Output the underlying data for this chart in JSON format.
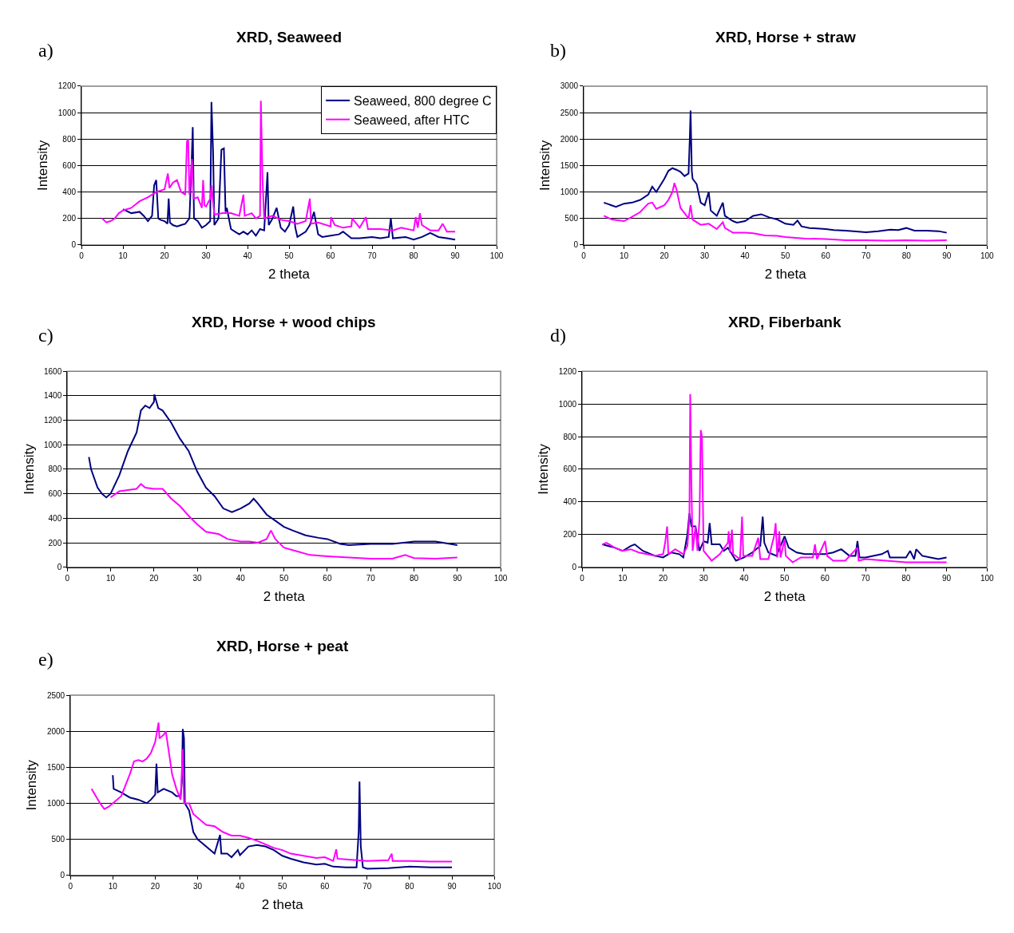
{
  "chart_data": [
    {
      "type": "line",
      "title": "XRD, Seaweed",
      "xlabel": "2 theta",
      "ylabel": "Intensity",
      "annotations": [
        "a)"
      ],
      "xlim": [
        0,
        100
      ],
      "xticks": [
        0,
        10,
        20,
        30,
        40,
        50,
        60,
        70,
        80,
        90,
        100
      ],
      "ylim": [
        0,
        1200
      ],
      "yticks": [
        0,
        200,
        400,
        600,
        800,
        1000,
        1200
      ],
      "grid": "y",
      "legend": "top right",
      "marker": "none",
      "series": [
        {
          "name": "Seaweed, 800 degree C",
          "color": "#000080",
          "x": [
            10,
            12,
            14,
            15,
            16,
            17,
            17.5,
            18,
            18.5,
            19,
            20,
            20.7,
            21,
            21.3,
            22,
            23,
            24,
            25,
            26,
            26.5,
            26.8,
            27.1,
            28,
            29,
            30,
            31,
            31.3,
            31.7,
            32,
            33,
            33.7,
            34.3,
            34.7,
            35,
            36,
            37,
            38,
            39,
            40,
            41,
            42,
            43,
            44,
            44.8,
            45.1,
            46,
            47,
            48,
            49,
            50,
            51,
            51.5,
            52,
            54,
            55,
            56,
            57,
            58,
            60,
            62,
            63,
            65,
            67,
            70,
            72,
            74,
            74.5,
            75,
            78,
            80,
            82,
            84,
            86,
            88,
            90
          ],
          "values": [
            270,
            240,
            250,
            220,
            180,
            220,
            450,
            490,
            200,
            190,
            180,
            160,
            350,
            170,
            150,
            140,
            150,
            160,
            200,
            600,
            890,
            200,
            180,
            130,
            150,
            180,
            1080,
            700,
            150,
            200,
            720,
            730,
            250,
            280,
            120,
            100,
            80,
            100,
            80,
            110,
            70,
            120,
            110,
            550,
            150,
            200,
            280,
            130,
            100,
            150,
            290,
            130,
            60,
            100,
            150,
            250,
            80,
            60,
            70,
            80,
            100,
            50,
            50,
            60,
            50,
            60,
            200,
            50,
            60,
            40,
            60,
            90,
            60,
            50,
            40
          ]
        },
        {
          "name": "Seaweed, after HTC",
          "color": "#ff00ff",
          "x": [
            5,
            6,
            7,
            8,
            9,
            10,
            12,
            14,
            16,
            18,
            20,
            20.8,
            21.2,
            22,
            23,
            24,
            25,
            25.4,
            25.7,
            26,
            26.6,
            27,
            28,
            29,
            29.3,
            29.6,
            30,
            31,
            31.3,
            32,
            34,
            36,
            38,
            39,
            39.3,
            41,
            42,
            43,
            43.2,
            43.6,
            44,
            46,
            48,
            50,
            52,
            54,
            55,
            55.3,
            57,
            60,
            60.1,
            61,
            63,
            65,
            65.2,
            67,
            68.5,
            69,
            72,
            75,
            77,
            80,
            80.5,
            81,
            81.5,
            82,
            84,
            86,
            87,
            88,
            90
          ],
          "values": [
            200,
            170,
            180,
            200,
            240,
            260,
            280,
            330,
            360,
            400,
            420,
            540,
            430,
            470,
            490,
            400,
            380,
            780,
            800,
            380,
            650,
            350,
            360,
            280,
            490,
            300,
            290,
            350,
            450,
            230,
            240,
            240,
            220,
            380,
            220,
            240,
            200,
            220,
            1090,
            500,
            200,
            220,
            190,
            180,
            160,
            180,
            350,
            160,
            170,
            140,
            210,
            150,
            130,
            140,
            200,
            130,
            210,
            120,
            120,
            110,
            130,
            110,
            210,
            130,
            240,
            150,
            110,
            110,
            160,
            100,
            100
          ]
        }
      ]
    },
    {
      "type": "line",
      "title": "XRD, Horse + straw",
      "xlabel": "2 theta",
      "ylabel": "Intensity",
      "annotations": [
        "b)"
      ],
      "xlim": [
        0,
        100
      ],
      "xticks": [
        0,
        10,
        20,
        30,
        40,
        50,
        60,
        70,
        80,
        90,
        100
      ],
      "ylim": [
        0,
        3000
      ],
      "yticks": [
        0,
        500,
        1000,
        1500,
        2000,
        2500,
        3000
      ],
      "grid": "y",
      "marker": "none",
      "series": [
        {
          "color": "#000080",
          "x": [
            5,
            8,
            10,
            12,
            14,
            16,
            17,
            18,
            20,
            21,
            22,
            23,
            24,
            25,
            26,
            26.3,
            26.5,
            26.8,
            27,
            28,
            29,
            30,
            31,
            31.5,
            33,
            34.5,
            35,
            37,
            38,
            40,
            42,
            44,
            46,
            48,
            50,
            52,
            53,
            54,
            56,
            60,
            62,
            65,
            70,
            73,
            76,
            78,
            80,
            82,
            85,
            88,
            90
          ],
          "values": [
            800,
            720,
            780,
            800,
            850,
            950,
            1100,
            1000,
            1250,
            1400,
            1450,
            1420,
            1380,
            1300,
            1350,
            2000,
            2540,
            1400,
            1250,
            1150,
            800,
            750,
            1000,
            650,
            550,
            800,
            550,
            450,
            420,
            450,
            550,
            580,
            520,
            480,
            400,
            380,
            460,
            350,
            320,
            300,
            280,
            270,
            240,
            260,
            290,
            280,
            320,
            270,
            270,
            260,
            230
          ]
        },
        {
          "color": "#ff00ff",
          "x": [
            5,
            7,
            10,
            12,
            14,
            16,
            17,
            18,
            20,
            21,
            22,
            22.5,
            23,
            24,
            25,
            26,
            26.5,
            27,
            29,
            31,
            33,
            34.5,
            35,
            37,
            40,
            42,
            45,
            48,
            50,
            55,
            60,
            65,
            70,
            75,
            80,
            85,
            90
          ],
          "values": [
            550,
            480,
            450,
            530,
            620,
            780,
            800,
            680,
            750,
            850,
            1000,
            1170,
            1050,
            700,
            600,
            500,
            750,
            480,
            380,
            400,
            300,
            430,
            320,
            230,
            230,
            220,
            180,
            170,
            150,
            120,
            110,
            90,
            90,
            80,
            90,
            80,
            90
          ]
        }
      ]
    },
    {
      "type": "line",
      "title": "XRD, Horse + wood chips",
      "xlabel": "2 theta",
      "ylabel": "Intensity",
      "annotations": [
        "c)"
      ],
      "xlim": [
        0,
        100
      ],
      "xticks": [
        0,
        10,
        20,
        30,
        40,
        50,
        60,
        70,
        80,
        90,
        100
      ],
      "ylim": [
        0,
        1600
      ],
      "yticks": [
        0,
        200,
        400,
        600,
        800,
        1000,
        1200,
        1400,
        1600
      ],
      "grid": "y",
      "marker": "none",
      "series": [
        {
          "color": "#000080",
          "x": [
            5,
            5.5,
            7,
            8,
            9,
            10,
            12,
            14,
            16,
            17,
            18,
            19,
            20,
            20.1,
            21,
            22,
            24,
            26,
            27,
            28,
            30,
            32,
            34,
            36,
            38,
            40,
            42,
            43,
            44,
            46,
            48,
            50,
            52,
            55,
            58,
            60,
            63,
            65,
            70,
            75,
            80,
            85,
            90
          ],
          "values": [
            900,
            800,
            650,
            600,
            570,
            600,
            750,
            950,
            1100,
            1280,
            1320,
            1300,
            1350,
            1410,
            1300,
            1280,
            1180,
            1050,
            1000,
            950,
            780,
            650,
            580,
            480,
            450,
            480,
            520,
            560,
            520,
            430,
            380,
            330,
            300,
            260,
            240,
            230,
            190,
            180,
            190,
            190,
            210,
            210,
            180
          ]
        },
        {
          "color": "#ff00ff",
          "x": [
            10,
            12,
            14,
            16,
            17,
            18,
            20,
            22,
            24,
            26,
            28,
            30,
            32,
            35,
            37,
            40,
            42,
            44,
            46,
            47,
            48,
            50,
            53,
            56,
            60,
            65,
            70,
            75,
            78,
            80,
            85,
            90
          ],
          "values": [
            570,
            620,
            630,
            640,
            680,
            650,
            640,
            640,
            560,
            500,
            420,
            350,
            290,
            270,
            230,
            210,
            210,
            200,
            230,
            300,
            230,
            160,
            130,
            100,
            90,
            80,
            70,
            70,
            100,
            75,
            70,
            80
          ]
        }
      ]
    },
    {
      "type": "line",
      "title": "XRD, Fiberbank",
      "xlabel": "2 theta",
      "ylabel": "Intensity",
      "annotations": [
        "d)"
      ],
      "xlim": [
        0,
        100
      ],
      "xticks": [
        0,
        10,
        20,
        30,
        40,
        50,
        60,
        70,
        80,
        90,
        100
      ],
      "ylim": [
        0,
        1200
      ],
      "yticks": [
        0,
        200,
        400,
        600,
        800,
        1000,
        1200
      ],
      "grid": "y",
      "marker": "none",
      "series": [
        {
          "color": "#000080",
          "x": [
            5,
            8,
            10,
            12,
            13,
            15,
            18,
            20,
            22,
            24,
            25,
            26,
            26.5,
            27,
            28,
            29,
            30,
            31,
            31.5,
            32,
            34,
            35,
            36,
            38,
            40,
            42,
            44,
            44.6,
            45,
            46,
            48,
            50,
            51,
            53,
            55,
            57,
            60,
            62,
            64,
            66,
            67.5,
            68,
            68.5,
            70,
            74,
            75.5,
            76,
            80,
            81,
            82,
            82.5,
            84,
            86,
            88,
            90
          ],
          "values": [
            140,
            120,
            100,
            130,
            140,
            100,
            70,
            60,
            90,
            80,
            60,
            200,
            330,
            250,
            250,
            100,
            160,
            150,
            270,
            140,
            140,
            100,
            120,
            40,
            60,
            90,
            130,
            310,
            150,
            90,
            70,
            190,
            120,
            90,
            80,
            80,
            80,
            90,
            110,
            70,
            70,
            160,
            60,
            60,
            80,
            100,
            60,
            60,
            100,
            50,
            110,
            70,
            60,
            50,
            60
          ]
        },
        {
          "color": "#ff00ff",
          "x": [
            5,
            6,
            8,
            10,
            12,
            14,
            16,
            18,
            20,
            20.5,
            21,
            21.3,
            23,
            25,
            26,
            26.5,
            26.7,
            27,
            27.3,
            28,
            28.5,
            29,
            29.3,
            29.6,
            30,
            32,
            34,
            36,
            36.2,
            36.5,
            37,
            37.3,
            39,
            39.5,
            39.8,
            42,
            43.5,
            44,
            46,
            47.5,
            47.8,
            48.2,
            48.7,
            49,
            50,
            50.3,
            52,
            54,
            57,
            57.5,
            58,
            60,
            60.5,
            62,
            65,
            68,
            68.3,
            70,
            75,
            80,
            85,
            90
          ],
          "values": [
            140,
            150,
            120,
            100,
            110,
            90,
            80,
            70,
            80,
            150,
            250,
            80,
            110,
            80,
            130,
            300,
            1060,
            500,
            100,
            250,
            100,
            300,
            840,
            800,
            100,
            40,
            80,
            150,
            220,
            90,
            230,
            80,
            50,
            310,
            70,
            70,
            180,
            50,
            50,
            200,
            270,
            60,
            220,
            60,
            170,
            70,
            30,
            60,
            60,
            140,
            50,
            160,
            70,
            40,
            40,
            120,
            40,
            50,
            40,
            30,
            30,
            30
          ]
        }
      ]
    },
    {
      "type": "line",
      "title": "XRD, Horse + peat",
      "xlabel": "2 theta",
      "ylabel": "Intensity",
      "annotations": [
        "e)"
      ],
      "xlim": [
        0,
        100
      ],
      "xticks": [
        0,
        10,
        20,
        30,
        40,
        50,
        60,
        70,
        80,
        90,
        100
      ],
      "ylim": [
        0,
        2500
      ],
      "yticks": [
        0,
        500,
        1000,
        1500,
        2000,
        2500
      ],
      "grid": "y",
      "marker": "none",
      "series": [
        {
          "color": "#000080",
          "x": [
            10,
            10.2,
            12,
            14,
            16,
            18,
            19,
            20,
            20.3,
            20.6,
            22,
            24,
            25,
            26,
            26.3,
            26.5,
            26.8,
            27,
            28,
            29,
            30,
            32,
            34,
            35.3,
            35.6,
            37,
            38,
            39.5,
            40,
            42,
            44,
            46,
            48,
            50,
            52,
            55,
            58,
            60,
            62,
            65,
            67.5,
            68,
            68.2,
            68.5,
            69,
            70,
            75,
            80,
            85,
            90
          ],
          "values": [
            1390,
            1200,
            1150,
            1080,
            1050,
            1000,
            1050,
            1120,
            1550,
            1150,
            1200,
            1150,
            1100,
            1100,
            1300,
            2030,
            1900,
            1000,
            900,
            600,
            500,
            400,
            300,
            560,
            300,
            300,
            250,
            350,
            280,
            400,
            420,
            400,
            350,
            270,
            230,
            180,
            150,
            160,
            120,
            110,
            110,
            600,
            1300,
            400,
            110,
            90,
            100,
            120,
            110,
            110
          ]
        },
        {
          "color": "#ff00ff",
          "x": [
            5,
            6,
            7,
            8,
            9,
            10,
            12,
            13,
            14,
            15,
            16,
            17,
            18,
            19,
            20,
            20.8,
            21,
            22,
            22.5,
            23,
            24,
            25,
            26,
            26.5,
            26.8,
            28,
            29,
            30,
            32,
            34,
            36,
            38,
            40,
            42,
            44,
            46,
            48,
            50,
            52,
            55,
            58,
            60,
            62,
            62.7,
            63,
            65,
            70,
            75,
            75.8,
            76,
            80,
            85,
            90
          ],
          "values": [
            1200,
            1100,
            1000,
            920,
            950,
            1000,
            1100,
            1250,
            1400,
            1580,
            1600,
            1580,
            1620,
            1700,
            1850,
            2120,
            1900,
            1950,
            2000,
            1800,
            1400,
            1200,
            1050,
            1750,
            1000,
            1000,
            850,
            800,
            700,
            680,
            600,
            550,
            550,
            520,
            480,
            430,
            380,
            350,
            300,
            270,
            240,
            250,
            200,
            360,
            230,
            220,
            200,
            210,
            300,
            200,
            200,
            190,
            190
          ]
        }
      ]
    }
  ]
}
